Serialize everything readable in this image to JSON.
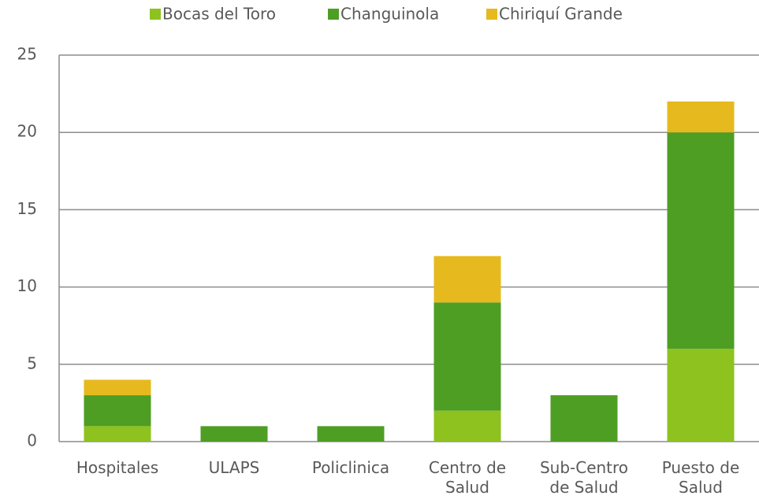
{
  "chart_data": {
    "type": "stacked_bar",
    "categories": [
      "Hospitales",
      "ULAPS",
      "Policlinica",
      "Centro de Salud",
      "Sub-Centro de Salud",
      "Puesto de Salud"
    ],
    "series": [
      {
        "name": "Bocas del Toro",
        "color": "#8dc21f",
        "values": [
          1,
          0,
          0,
          2,
          0,
          6
        ]
      },
      {
        "name": "Changuinola",
        "color": "#4e9e24",
        "values": [
          2,
          1,
          1,
          7,
          3,
          14
        ]
      },
      {
        "name": "Chiriquí Grande",
        "color": "#e6b91e",
        "values": [
          1,
          0,
          0,
          3,
          0,
          2
        ]
      }
    ],
    "ylim": [
      0,
      25
    ],
    "yticks": [
      0,
      5,
      10,
      15,
      20,
      25
    ],
    "grid": true,
    "legend": "top"
  }
}
